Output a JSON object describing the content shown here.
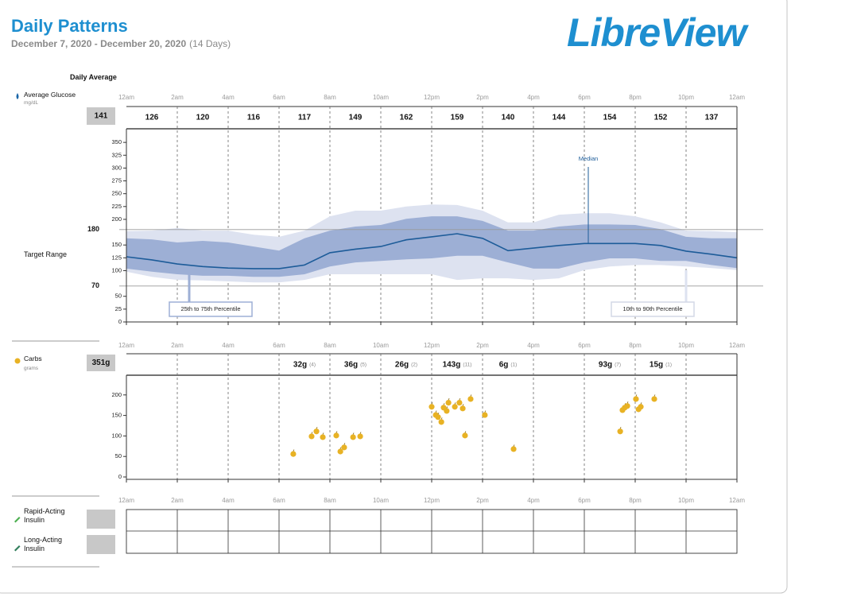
{
  "header": {
    "title": "Daily Patterns",
    "date_range": "December 7, 2020 - December 20, 2020",
    "days": "(14 Days)",
    "logo": "LibreView"
  },
  "chart_data": [
    {
      "type": "percentile-band",
      "section_title": "Daily Average",
      "label": "Average Glucose",
      "unit": "mg/dL",
      "overall": 141,
      "bin_values": [
        126,
        120,
        116,
        117,
        149,
        162,
        159,
        140,
        144,
        154,
        152,
        137
      ],
      "xlim": [
        0,
        24
      ],
      "xticks": [
        {
          "value": 0,
          "label": "12am"
        },
        {
          "value": 2,
          "label": "2am"
        },
        {
          "value": 4,
          "label": "4am"
        },
        {
          "value": 6,
          "label": "6am"
        },
        {
          "value": 8,
          "label": "8am"
        },
        {
          "value": 10,
          "label": "10am"
        },
        {
          "value": 12,
          "label": "12pm"
        },
        {
          "value": 14,
          "label": "2pm"
        },
        {
          "value": 16,
          "label": "4pm"
        },
        {
          "value": 18,
          "label": "6pm"
        },
        {
          "value": 20,
          "label": "8pm"
        },
        {
          "value": 22,
          "label": "10pm"
        },
        {
          "value": 24,
          "label": "12am"
        }
      ],
      "ylim": [
        0,
        375
      ],
      "yticks": [
        0,
        25,
        50,
        100,
        125,
        150,
        200,
        225,
        250,
        275,
        300,
        325,
        350
      ],
      "target_range": {
        "label": "Target Range",
        "low": 70,
        "high": 180
      },
      "x": [
        0,
        1,
        2,
        3,
        4,
        5,
        6,
        7,
        8,
        9,
        10,
        11,
        12,
        13,
        14,
        15,
        16,
        17,
        18,
        19,
        20,
        21,
        22,
        23,
        24
      ],
      "series": [
        {
          "name": "10th to 90th Percentile",
          "color": "#dde2f0",
          "high": [
            177,
            178,
            183,
            178,
            178,
            170,
            166,
            178,
            206,
            217,
            217,
            225,
            229,
            228,
            217,
            194,
            194,
            209,
            212,
            212,
            206,
            194,
            178,
            177,
            175
          ],
          "low": [
            98,
            88,
            82,
            81,
            79,
            77,
            77,
            82,
            93,
            93,
            93,
            93,
            93,
            82,
            85,
            85,
            82,
            85,
            101,
            108,
            111,
            111,
            108,
            105,
            101
          ]
        },
        {
          "name": "25th to 75th Percentile",
          "color": "#9dafd5",
          "high": [
            163,
            161,
            155,
            158,
            155,
            147,
            139,
            163,
            178,
            186,
            189,
            201,
            206,
            206,
            197,
            178,
            178,
            186,
            190,
            190,
            189,
            181,
            166,
            163,
            163
          ],
          "low": [
            104,
            98,
            93,
            90,
            90,
            88,
            88,
            93,
            108,
            116,
            119,
            122,
            124,
            129,
            129,
            116,
            104,
            104,
            116,
            124,
            124,
            119,
            119,
            111,
            105
          ]
        },
        {
          "name": "Median",
          "color": "#1d5c99",
          "values": [
            127,
            121,
            113,
            108,
            105,
            104,
            104,
            111,
            135,
            142,
            147,
            160,
            166,
            172,
            163,
            139,
            144,
            149,
            153,
            153,
            153,
            149,
            138,
            132,
            125
          ]
        }
      ]
    },
    {
      "type": "scatter",
      "label": "Carbs",
      "unit": "grams",
      "total": "351g",
      "color": "#e8b224",
      "bin_summaries": [
        null,
        null,
        null,
        {
          "total": "32g",
          "count": "(4)"
        },
        {
          "total": "36g",
          "count": "(5)"
        },
        {
          "total": "26g",
          "count": "(2)"
        },
        {
          "total": "143g",
          "count": "(11)"
        },
        {
          "total": "6g",
          "count": "(1)"
        },
        null,
        {
          "total": "93g",
          "count": "(7)"
        },
        {
          "total": "15g",
          "count": "(1)"
        },
        null
      ],
      "xlim": [
        0,
        24
      ],
      "xticks": [
        {
          "value": 0,
          "label": "12am"
        },
        {
          "value": 2,
          "label": "2am"
        },
        {
          "value": 4,
          "label": "4am"
        },
        {
          "value": 6,
          "label": "6am"
        },
        {
          "value": 8,
          "label": "8am"
        },
        {
          "value": 10,
          "label": "10am"
        },
        {
          "value": 12,
          "label": "12pm"
        },
        {
          "value": 14,
          "label": "2pm"
        },
        {
          "value": 16,
          "label": "4pm"
        },
        {
          "value": 18,
          "label": "6pm"
        },
        {
          "value": 20,
          "label": "8pm"
        },
        {
          "value": 22,
          "label": "10pm"
        },
        {
          "value": 24,
          "label": "12am"
        }
      ],
      "ylim": [
        0,
        250
      ],
      "yticks": [
        0,
        50,
        100,
        150,
        200
      ],
      "x": [
        6.56,
        7.28,
        7.47,
        7.72,
        8.25,
        8.41,
        8.56,
        8.91,
        9.19,
        12.0,
        12.16,
        12.25,
        12.38,
        12.47,
        12.59,
        12.66,
        12.91,
        13.09,
        13.22,
        13.31,
        13.53,
        14.09,
        15.22,
        19.41,
        19.5,
        19.59,
        19.69,
        20.03,
        20.13,
        20.22,
        20.75
      ],
      "values": [
        56,
        99,
        111,
        97,
        101,
        62,
        72,
        97,
        99,
        171,
        151,
        146,
        134,
        169,
        161,
        181,
        171,
        181,
        167,
        101,
        190,
        151,
        68,
        111,
        163,
        169,
        173,
        190,
        165,
        171,
        190
      ]
    },
    {
      "type": "table",
      "rows": [
        "Rapid-Acting Insulin",
        "Long-Acting Insulin"
      ],
      "xlim": [
        0,
        24
      ],
      "xticks": [
        {
          "value": 0,
          "label": "12am"
        },
        {
          "value": 2,
          "label": "2am"
        },
        {
          "value": 4,
          "label": "4am"
        },
        {
          "value": 6,
          "label": "6am"
        },
        {
          "value": 8,
          "label": "8am"
        },
        {
          "value": 10,
          "label": "10am"
        },
        {
          "value": 12,
          "label": "12pm"
        },
        {
          "value": 14,
          "label": "2pm"
        },
        {
          "value": 16,
          "label": "4pm"
        },
        {
          "value": 18,
          "label": "6pm"
        },
        {
          "value": 20,
          "label": "8pm"
        },
        {
          "value": 22,
          "label": "10pm"
        },
        {
          "value": 24,
          "label": "12am"
        }
      ]
    }
  ]
}
